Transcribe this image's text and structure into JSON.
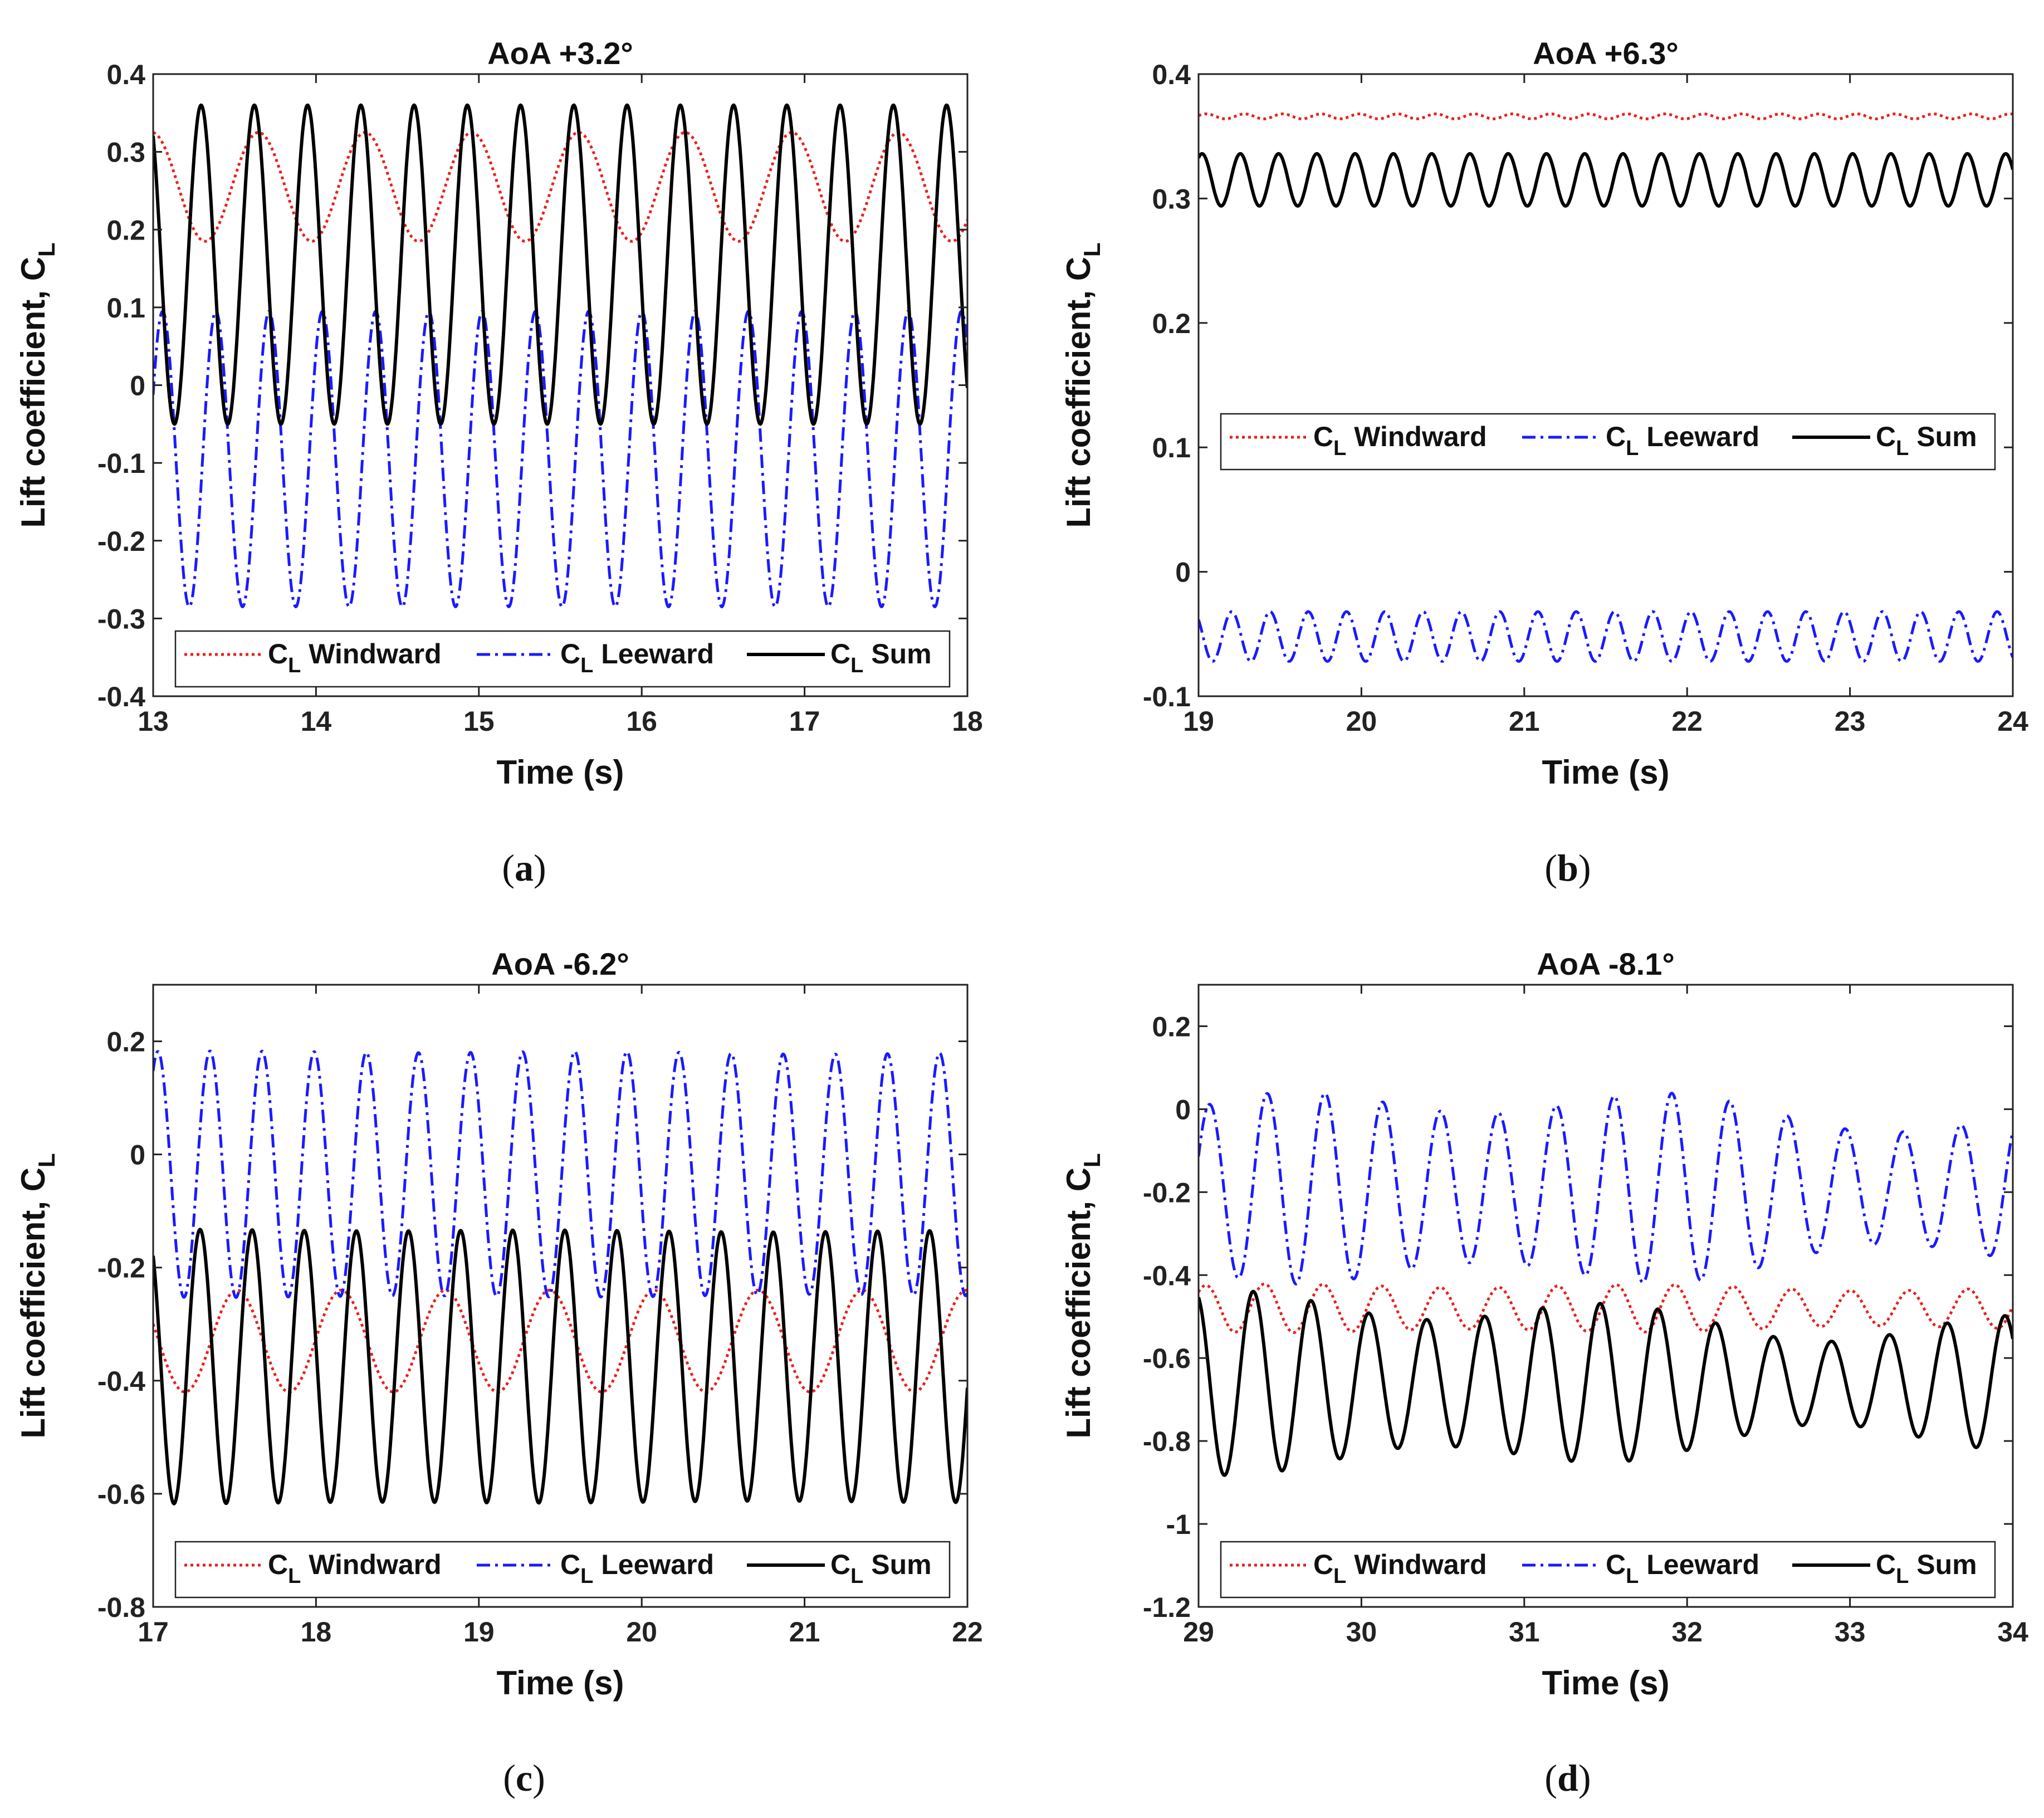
{
  "colors": {
    "windward": "#e8211c",
    "leeward": "#1a1aff",
    "sum": "#000000",
    "axis": "#222222"
  },
  "chart_data": [
    {
      "type": "line",
      "panel_label": "a",
      "title": "AoA +3.2°",
      "xlabel": "Time (s)",
      "ylabel_main": "Lift coefficient, C",
      "ylabel_sub": "L",
      "xlim": [
        13,
        18
      ],
      "ylim": [
        -0.4,
        0.4
      ],
      "xticks": [
        13,
        14,
        15,
        16,
        17,
        18
      ],
      "xtick_labels": [
        "13",
        "14",
        "15",
        "16",
        "17",
        "18"
      ],
      "yticks": [
        -0.4,
        -0.3,
        -0.2,
        -0.1,
        0,
        0.1,
        0.2,
        0.3,
        0.4
      ],
      "ytick_labels": [
        "-0.4",
        "-0.3",
        "-0.2",
        "-0.1",
        "0",
        "0.1",
        "0.2",
        "0.3",
        "0.4"
      ],
      "legend_position": "bottom",
      "series": [
        {
          "key": "windward",
          "legend_c": "C",
          "legend_sub": "L",
          "legend_name": "Windward",
          "style": "dotted",
          "mean": 0.255,
          "amp": 0.07,
          "period": 0.655,
          "phase": 1.65,
          "amp_var": 0.0
        },
        {
          "key": "leeward",
          "legend_c": "C",
          "legend_sub": "L",
          "legend_name": "Leeward",
          "style": "dashdot",
          "mean": -0.095,
          "amp": 0.19,
          "period": 0.327,
          "phase": 0.45,
          "amp_var": 0.0
        },
        {
          "key": "sum",
          "legend_c": "C",
          "legend_sub": "L",
          "legend_name": "Sum",
          "style": "solid",
          "mean": 0.155,
          "amp": 0.205,
          "period": 0.327,
          "phase": 2.2,
          "amp_var": 0.0
        }
      ]
    },
    {
      "type": "line",
      "panel_label": "b",
      "title": "AoA +6.3°",
      "xlabel": "Time (s)",
      "ylabel_main": "Lift coefficient, C",
      "ylabel_sub": "L",
      "xlim": [
        19,
        24
      ],
      "ylim": [
        -0.1,
        0.4
      ],
      "xticks": [
        19,
        20,
        21,
        22,
        23,
        24
      ],
      "xtick_labels": [
        "19",
        "20",
        "21",
        "22",
        "23",
        "24"
      ],
      "yticks": [
        -0.1,
        0,
        0.1,
        0.2,
        0.3,
        0.4
      ],
      "ytick_labels": [
        "-0.1",
        "0",
        "0.1",
        "0.2",
        "0.3",
        "0.4"
      ],
      "legend_position": "middle",
      "series": [
        {
          "key": "windward",
          "legend_c": "C",
          "legend_sub": "L",
          "legend_name": "Windward",
          "style": "dotted",
          "mean": 0.366,
          "amp": 0.002,
          "period": 0.235,
          "phase": 0.3,
          "amp_var": 0.0
        },
        {
          "key": "leeward",
          "legend_c": "C",
          "legend_sub": "L",
          "legend_name": "Leeward",
          "style": "dashdot",
          "mean": -0.052,
          "amp": 0.02,
          "period": 0.235,
          "phase": 2.4,
          "amp_var": 0.0
        },
        {
          "key": "sum",
          "legend_c": "C",
          "legend_sub": "L",
          "legend_name": "Sum",
          "style": "solid",
          "mean": 0.315,
          "amp": 0.021,
          "period": 0.235,
          "phase": 1.0,
          "amp_var": 0.0
        }
      ]
    },
    {
      "type": "line",
      "panel_label": "c",
      "title": "AoA -6.2°",
      "xlabel": "Time (s)",
      "ylabel_main": "Lift coefficient, C",
      "ylabel_sub": "L",
      "xlim": [
        17,
        22
      ],
      "ylim": [
        -0.8,
        0.3
      ],
      "xticks": [
        17,
        18,
        19,
        20,
        21,
        22
      ],
      "xtick_labels": [
        "17",
        "18",
        "19",
        "20",
        "21",
        "22"
      ],
      "yticks": [
        -0.8,
        -0.6,
        -0.4,
        -0.2,
        0,
        0.2
      ],
      "ytick_labels": [
        "-0.8",
        "-0.6",
        "-0.4",
        "-0.2",
        "0",
        "0.2"
      ],
      "legend_position": "bottom",
      "series": [
        {
          "key": "windward",
          "legend_c": "C",
          "legend_sub": "L",
          "legend_name": "Windward",
          "style": "dotted",
          "mean": -0.33,
          "amp": 0.09,
          "period": 0.64,
          "phase": 2.8,
          "amp_var": 0.0
        },
        {
          "key": "leeward",
          "legend_c": "C",
          "legend_sub": "L",
          "legend_name": "Leeward",
          "style": "dashdot",
          "mean": -0.035,
          "amp": 0.215,
          "period": 0.32,
          "phase": 1.0,
          "amp_var": 0.015
        },
        {
          "key": "sum",
          "legend_c": "C",
          "legend_sub": "L",
          "legend_name": "Sum",
          "style": "solid",
          "mean": -0.375,
          "amp": 0.24,
          "period": 0.32,
          "phase": 2.2,
          "amp_var": 0.01
        }
      ]
    },
    {
      "type": "line",
      "panel_label": "d",
      "title": "AoA -8.1°",
      "xlabel": "Time (s)",
      "ylabel_main": "Lift coefficient, C",
      "ylabel_sub": "L",
      "xlim": [
        29,
        34
      ],
      "ylim": [
        -1.2,
        0.3
      ],
      "xticks": [
        29,
        30,
        31,
        32,
        33,
        34
      ],
      "xtick_labels": [
        "29",
        "30",
        "31",
        "32",
        "33",
        "34"
      ],
      "yticks": [
        -1.2,
        -1,
        -0.8,
        -0.6,
        -0.4,
        -0.2,
        0,
        0.2
      ],
      "ytick_labels": [
        "-1.2",
        "-1",
        "-0.8",
        "-0.6",
        "-0.4",
        "-0.2",
        "0",
        "0.2"
      ],
      "legend_position": "bottom",
      "series": [
        {
          "key": "windward",
          "legend_c": "C",
          "legend_sub": "L",
          "legend_name": "Windward",
          "style": "dotted",
          "mean": -0.48,
          "amp": 0.05,
          "period": 0.36,
          "phase": 0.8,
          "amp_var": 0.2
        },
        {
          "key": "leeward",
          "legend_c": "C",
          "legend_sub": "L",
          "legend_name": "Leeward",
          "style": "dashdot",
          "mean": -0.19,
          "amp": 0.18,
          "period": 0.355,
          "phase": 0.4,
          "amp_var": 0.35
        },
        {
          "key": "sum",
          "legend_c": "C",
          "legend_sub": "L",
          "legend_name": "Sum",
          "style": "solid",
          "mean": -0.66,
          "amp": 0.16,
          "period": 0.355,
          "phase": 1.9,
          "amp_var": 0.4
        }
      ]
    }
  ]
}
